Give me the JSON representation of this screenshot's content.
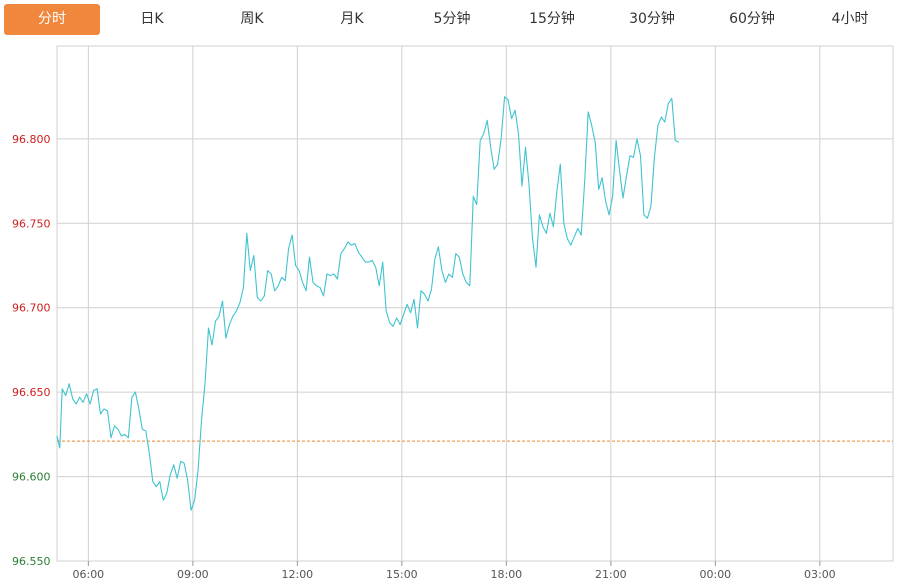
{
  "tabs": [
    {
      "label": "分时",
      "active": true
    },
    {
      "label": "日K",
      "active": false
    },
    {
      "label": "周K",
      "active": false
    },
    {
      "label": "月K",
      "active": false
    },
    {
      "label": "5分钟",
      "active": false
    },
    {
      "label": "15分钟",
      "active": false
    },
    {
      "label": "30分钟",
      "active": false
    },
    {
      "label": "60分钟",
      "active": false
    },
    {
      "label": "4小时",
      "active": false
    }
  ],
  "colors": {
    "accent": "#f0873c",
    "line": "#3fc3cf",
    "reference": "#e8862c",
    "label_above": "#cc2020",
    "label_below": "#2e7d32",
    "grid": "#d0d0d0"
  },
  "chart_data": {
    "type": "line",
    "title": "",
    "xlabel": "",
    "ylabel": "",
    "grid": true,
    "reference_value": 96.621,
    "ylim": [
      96.55,
      96.855
    ],
    "y_ticks": [
      "96.550",
      "96.600",
      "96.650",
      "96.700",
      "96.750",
      "96.800"
    ],
    "x_ticks": [
      "06:00",
      "09:00",
      "12:00",
      "15:00",
      "18:00",
      "21:00",
      "00:00",
      "03:00"
    ],
    "x_unit": "hours since 06:00",
    "xlim": [
      -0.9,
      23.1
    ],
    "series": [
      {
        "name": "",
        "points": [
          [
            -0.9,
            96.624
          ],
          [
            -0.82,
            96.617
          ],
          [
            -0.75,
            96.652
          ],
          [
            -0.65,
            96.648
          ],
          [
            -0.55,
            96.655
          ],
          [
            -0.45,
            96.646
          ],
          [
            -0.35,
            96.643
          ],
          [
            -0.25,
            96.647
          ],
          [
            -0.15,
            96.644
          ],
          [
            -0.05,
            96.649
          ],
          [
            0.05,
            96.643
          ],
          [
            0.15,
            96.651
          ],
          [
            0.25,
            96.652
          ],
          [
            0.35,
            96.637
          ],
          [
            0.45,
            96.64
          ],
          [
            0.55,
            96.639
          ],
          [
            0.65,
            96.623
          ],
          [
            0.75,
            96.63
          ],
          [
            0.85,
            96.628
          ],
          [
            0.95,
            96.624
          ],
          [
            1.05,
            96.625
          ],
          [
            1.15,
            96.623
          ],
          [
            1.25,
            96.647
          ],
          [
            1.35,
            96.65
          ],
          [
            1.45,
            96.64
          ],
          [
            1.55,
            96.628
          ],
          [
            1.65,
            96.627
          ],
          [
            1.75,
            96.614
          ],
          [
            1.85,
            96.597
          ],
          [
            1.95,
            96.594
          ],
          [
            2.05,
            96.597
          ],
          [
            2.15,
            96.586
          ],
          [
            2.25,
            96.59
          ],
          [
            2.35,
            96.601
          ],
          [
            2.45,
            96.607
          ],
          [
            2.55,
            96.599
          ],
          [
            2.65,
            96.609
          ],
          [
            2.75,
            96.608
          ],
          [
            2.85,
            96.598
          ],
          [
            2.95,
            96.58
          ],
          [
            3.05,
            96.586
          ],
          [
            3.15,
            96.604
          ],
          [
            3.25,
            96.634
          ],
          [
            3.35,
            96.655
          ],
          [
            3.45,
            96.688
          ],
          [
            3.55,
            96.678
          ],
          [
            3.65,
            96.692
          ],
          [
            3.75,
            96.695
          ],
          [
            3.85,
            96.704
          ],
          [
            3.95,
            96.682
          ],
          [
            4.05,
            96.69
          ],
          [
            4.15,
            96.695
          ],
          [
            4.25,
            96.698
          ],
          [
            4.35,
            96.703
          ],
          [
            4.45,
            96.712
          ],
          [
            4.55,
            96.744
          ],
          [
            4.65,
            96.722
          ],
          [
            4.75,
            96.731
          ],
          [
            4.85,
            96.706
          ],
          [
            4.95,
            96.704
          ],
          [
            5.05,
            96.707
          ],
          [
            5.15,
            96.722
          ],
          [
            5.25,
            96.72
          ],
          [
            5.35,
            96.71
          ],
          [
            5.45,
            96.713
          ],
          [
            5.55,
            96.718
          ],
          [
            5.65,
            96.716
          ],
          [
            5.75,
            96.735
          ],
          [
            5.85,
            96.743
          ],
          [
            5.95,
            96.725
          ],
          [
            6.05,
            96.722
          ],
          [
            6.15,
            96.715
          ],
          [
            6.25,
            96.71
          ],
          [
            6.35,
            96.73
          ],
          [
            6.45,
            96.715
          ],
          [
            6.55,
            96.713
          ],
          [
            6.65,
            96.712
          ],
          [
            6.75,
            96.707
          ],
          [
            6.85,
            96.72
          ],
          [
            6.95,
            96.719
          ],
          [
            7.05,
            96.72
          ],
          [
            7.15,
            96.717
          ],
          [
            7.25,
            96.732
          ],
          [
            7.35,
            96.735
          ],
          [
            7.45,
            96.739
          ],
          [
            7.55,
            96.737
          ],
          [
            7.65,
            96.738
          ],
          [
            7.75,
            96.733
          ],
          [
            7.85,
            96.73
          ],
          [
            7.95,
            96.727
          ],
          [
            8.05,
            96.727
          ],
          [
            8.15,
            96.728
          ],
          [
            8.25,
            96.724
          ],
          [
            8.35,
            96.713
          ],
          [
            8.45,
            96.727
          ],
          [
            8.55,
            96.698
          ],
          [
            8.65,
            96.691
          ],
          [
            8.75,
            96.689
          ],
          [
            8.85,
            96.694
          ],
          [
            8.95,
            96.69
          ],
          [
            9.05,
            96.696
          ],
          [
            9.15,
            96.702
          ],
          [
            9.25,
            96.697
          ],
          [
            9.35,
            96.705
          ],
          [
            9.45,
            96.688
          ],
          [
            9.55,
            96.71
          ],
          [
            9.65,
            96.708
          ],
          [
            9.75,
            96.704
          ],
          [
            9.85,
            96.711
          ],
          [
            9.95,
            96.729
          ],
          [
            10.05,
            96.736
          ],
          [
            10.15,
            96.722
          ],
          [
            10.25,
            96.715
          ],
          [
            10.35,
            96.72
          ],
          [
            10.45,
            96.718
          ],
          [
            10.55,
            96.732
          ],
          [
            10.65,
            96.73
          ],
          [
            10.75,
            96.72
          ],
          [
            10.85,
            96.715
          ],
          [
            10.95,
            96.713
          ],
          [
            11.05,
            96.766
          ],
          [
            11.15,
            96.761
          ],
          [
            11.25,
            96.799
          ],
          [
            11.35,
            96.803
          ],
          [
            11.45,
            96.811
          ],
          [
            11.55,
            96.795
          ],
          [
            11.65,
            96.782
          ],
          [
            11.75,
            96.785
          ],
          [
            11.85,
            96.8
          ],
          [
            11.95,
            96.825
          ],
          [
            12.05,
            96.823
          ],
          [
            12.15,
            96.812
          ],
          [
            12.25,
            96.817
          ],
          [
            12.35,
            96.803
          ],
          [
            12.45,
            96.772
          ],
          [
            12.55,
            96.795
          ],
          [
            12.65,
            96.773
          ],
          [
            12.75,
            96.741
          ],
          [
            12.85,
            96.724
          ],
          [
            12.95,
            96.755
          ],
          [
            13.05,
            96.748
          ],
          [
            13.15,
            96.744
          ],
          [
            13.25,
            96.756
          ],
          [
            13.35,
            96.748
          ],
          [
            13.45,
            96.769
          ],
          [
            13.55,
            96.785
          ],
          [
            13.65,
            96.75
          ],
          [
            13.75,
            96.741
          ],
          [
            13.85,
            96.737
          ],
          [
            13.95,
            96.742
          ],
          [
            14.05,
            96.747
          ],
          [
            14.15,
            96.743
          ],
          [
            14.25,
            96.775
          ],
          [
            14.35,
            96.816
          ],
          [
            14.45,
            96.808
          ],
          [
            14.55,
            96.798
          ],
          [
            14.65,
            96.77
          ],
          [
            14.75,
            96.777
          ],
          [
            14.85,
            96.763
          ],
          [
            14.95,
            96.755
          ],
          [
            15.05,
            96.766
          ],
          [
            15.15,
            96.799
          ],
          [
            15.25,
            96.781
          ],
          [
            15.35,
            96.765
          ],
          [
            15.45,
            96.778
          ],
          [
            15.55,
            96.79
          ],
          [
            15.65,
            96.789
          ],
          [
            15.75,
            96.8
          ],
          [
            15.85,
            96.79
          ],
          [
            15.95,
            96.755
          ],
          [
            16.05,
            96.753
          ],
          [
            16.15,
            96.76
          ],
          [
            16.25,
            96.789
          ],
          [
            16.35,
            96.808
          ],
          [
            16.45,
            96.813
          ],
          [
            16.55,
            96.81
          ],
          [
            16.65,
            96.821
          ],
          [
            16.75,
            96.824
          ],
          [
            16.85,
            96.799
          ],
          [
            16.95,
            96.798
          ]
        ]
      }
    ]
  }
}
